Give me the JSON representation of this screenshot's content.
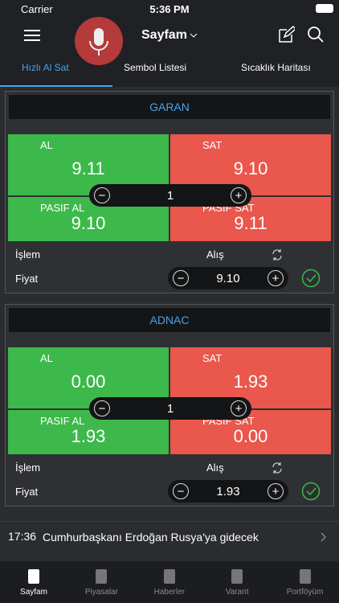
{
  "status_bar": {
    "carrier": "Carrier",
    "time": "5:36 PM"
  },
  "header": {
    "title": "Sayfam"
  },
  "tabs": [
    {
      "label": "Hızlı Al Sat",
      "active": true
    },
    {
      "label": "Sembol Listesi",
      "active": false
    },
    {
      "label": "Sıcaklık Haritası",
      "active": false
    }
  ],
  "cards": [
    {
      "symbol": "GARAN",
      "buy_label": "AL",
      "buy_price": "9.11",
      "sell_label": "SAT",
      "sell_price": "9.10",
      "passive_buy_label": "PASIF AL",
      "passive_buy_price": "9.10",
      "passive_sell_label": "PASIF SAT",
      "passive_sell_price": "9.11",
      "quantity": 1,
      "action_label": "İşlem",
      "action_value": "Alış",
      "price_label": "Fiyat",
      "price_value": "9.10"
    },
    {
      "symbol": "ADNAC",
      "buy_label": "AL",
      "buy_price": "0.00",
      "sell_label": "SAT",
      "sell_price": "1.93",
      "passive_buy_label": "PASIF AL",
      "passive_buy_price": "1.93",
      "passive_sell_label": "PASIF SAT",
      "passive_sell_price": "0.00",
      "quantity": 1,
      "action_label": "İşlem",
      "action_value": "Alış",
      "price_label": "Fiyat",
      "price_value": "1.93"
    }
  ],
  "news": {
    "time": "17:36",
    "headline": "Cumhurbaşkanı Erdoğan Rusya'ya gidecek"
  },
  "tab_bar": [
    {
      "label": "Sayfam",
      "active": true
    },
    {
      "label": "Piyasalar",
      "active": false
    },
    {
      "label": "Haberler",
      "active": false
    },
    {
      "label": "Varant",
      "active": false
    },
    {
      "label": "Portföyüm",
      "active": false
    }
  ]
}
